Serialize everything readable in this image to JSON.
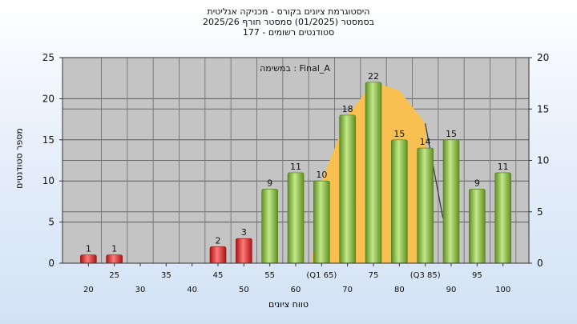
{
  "titles": {
    "line1": "היסטוגרמת ציונים בקורס - מכניקה אנליטית",
    "line2": "בסמסטר  (01/2025)  סמסטר חורף 2025/26",
    "line3": "סטודנטים רשומים - 177"
  },
  "chart_data": {
    "type": "bar",
    "legend_note": "במשימה : Final_A",
    "ylabel": "מספר סטודנטים",
    "xlabel": "טווח ציונים",
    "ylim_left": [
      0,
      25
    ],
    "ylim_right": [
      0,
      20
    ],
    "yticks_left": [
      0,
      5,
      10,
      15,
      20,
      25
    ],
    "yticks_right": [
      0,
      5,
      10,
      15,
      20
    ],
    "x_ticks": [
      {
        "label": "20",
        "row": 2
      },
      {
        "label": "25",
        "row": 1
      },
      {
        "label": "30",
        "row": 2
      },
      {
        "label": "35",
        "row": 1
      },
      {
        "label": "40",
        "row": 2
      },
      {
        "label": "45",
        "row": 1
      },
      {
        "label": "50",
        "row": 2
      },
      {
        "label": "55",
        "row": 1
      },
      {
        "label": "60",
        "row": 2
      },
      {
        "label": "(Q1 65)",
        "row": 1
      },
      {
        "label": "70",
        "row": 2
      },
      {
        "label": "75",
        "row": 1
      },
      {
        "label": "80",
        "row": 2
      },
      {
        "label": "(Q3 85)",
        "row": 1
      },
      {
        "label": "90",
        "row": 2
      },
      {
        "label": "95",
        "row": 1
      },
      {
        "label": "100",
        "row": 2
      }
    ],
    "bars": [
      {
        "slot": 1,
        "value": 1,
        "color": "red"
      },
      {
        "slot": 2,
        "value": 1,
        "color": "red"
      },
      {
        "slot": 6,
        "value": 2,
        "color": "red"
      },
      {
        "slot": 7,
        "value": 3,
        "color": "red"
      },
      {
        "slot": 8,
        "value": 9,
        "color": "green"
      },
      {
        "slot": 9,
        "value": 11,
        "color": "green"
      },
      {
        "slot": 10,
        "value": 10,
        "color": "green"
      },
      {
        "slot": 11,
        "value": 18,
        "color": "green"
      },
      {
        "slot": 12,
        "value": 22,
        "color": "green"
      },
      {
        "slot": 13,
        "value": 15,
        "color": "green"
      },
      {
        "slot": 14,
        "value": 14,
        "color": "green"
      },
      {
        "slot": 15,
        "value": 15,
        "color": "green"
      },
      {
        "slot": 16,
        "value": 9,
        "color": "green"
      },
      {
        "slot": 17,
        "value": 11,
        "color": "green"
      }
    ],
    "distribution_area": [
      {
        "slot": 10,
        "value": 10
      },
      {
        "slot": 11,
        "value": 18
      },
      {
        "slot": 12,
        "value": 22
      },
      {
        "slot": 13,
        "value": 21
      },
      {
        "slot": 14,
        "value": 17
      }
    ],
    "colors": {
      "plot_bg": "#c4c4c4",
      "red_bar": "#e03a3a",
      "green_bar": "#8dc63f",
      "area": "#f8c050",
      "grid": "#5a5a5a"
    }
  }
}
